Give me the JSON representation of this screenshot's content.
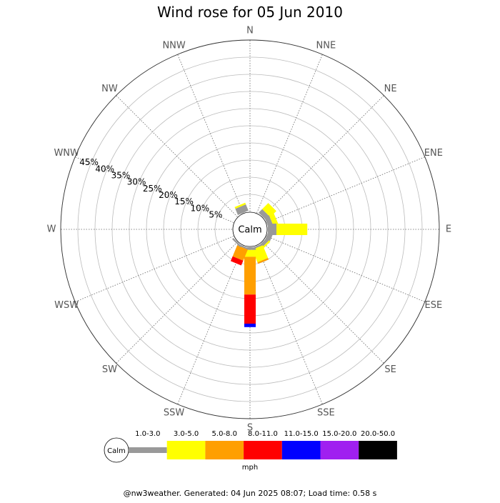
{
  "chart_data": {
    "type": "wind-rose",
    "title": "Wind rose for 05 Jun 2010",
    "calm_label": "Calm",
    "directions": [
      "N",
      "NNE",
      "NE",
      "ENE",
      "E",
      "ESE",
      "SE",
      "SSE",
      "S",
      "SSW",
      "SW",
      "WSW",
      "W",
      "WNW",
      "NW",
      "NNW"
    ],
    "radial_ticks": [
      "5%",
      "10%",
      "15%",
      "20%",
      "25%",
      "30%",
      "35%",
      "40%",
      "45%"
    ],
    "radial_tick_values": [
      5,
      10,
      15,
      20,
      25,
      30,
      35,
      40,
      45
    ],
    "rmax": 50,
    "calm_percent": 3.5,
    "speed_bins": [
      {
        "label": "1.0-3.0",
        "color": "#999999"
      },
      {
        "label": "3.0-5.0",
        "color": "#ffff00"
      },
      {
        "label": "5.0-8.0",
        "color": "#ff9f00"
      },
      {
        "label": "8.0-11.0",
        "color": "#ff0000"
      },
      {
        "label": "11.0-15.0",
        "color": "#0000ff"
      },
      {
        "label": "15.0-20.0",
        "color": "#a020f0"
      },
      {
        "label": "20.0-50.0",
        "color": "#000000"
      }
    ],
    "units": "mph",
    "series": [
      {
        "name": "1.0-3.0",
        "values": [
          0,
          0,
          1.5,
          1.5,
          2.5,
          1.5,
          1.0,
          0.5,
          0.8,
          0.5,
          0.5,
          0,
          0,
          0,
          0,
          2.0
        ]
      },
      {
        "name": "3.0-5.0",
        "values": [
          0,
          0,
          2.5,
          1.5,
          9.0,
          0,
          0.5,
          4.0,
          2.0,
          0,
          0,
          0,
          0,
          0,
          0,
          0.5
        ]
      },
      {
        "name": "5.0-8.0",
        "values": [
          0,
          0,
          0,
          0,
          0,
          0,
          0,
          0.5,
          11.0,
          3.5,
          0,
          0,
          0,
          0,
          0,
          0
        ]
      },
      {
        "name": "8.0-11.0",
        "values": [
          0,
          0,
          0,
          0,
          0,
          0,
          0,
          0,
          8.5,
          1.5,
          0,
          0,
          0,
          0,
          0,
          0
        ]
      },
      {
        "name": "11.0-15.0",
        "values": [
          0,
          0,
          0,
          0,
          0,
          0,
          0,
          0,
          1.0,
          0,
          0,
          0,
          0,
          0,
          0,
          0
        ]
      },
      {
        "name": "15.0-20.0",
        "values": [
          0,
          0,
          0,
          0,
          0,
          0,
          0,
          0,
          0,
          0,
          0,
          0,
          0,
          0,
          0,
          0
        ]
      },
      {
        "name": "20.0-50.0",
        "values": [
          0,
          0,
          0,
          0,
          0,
          0,
          0,
          0,
          0,
          0,
          0,
          0,
          0,
          0,
          0,
          0
        ]
      }
    ]
  },
  "footer": "@nw3weather. Generated: 04 Jun 2025 08:07; Load time: 0.58 s"
}
